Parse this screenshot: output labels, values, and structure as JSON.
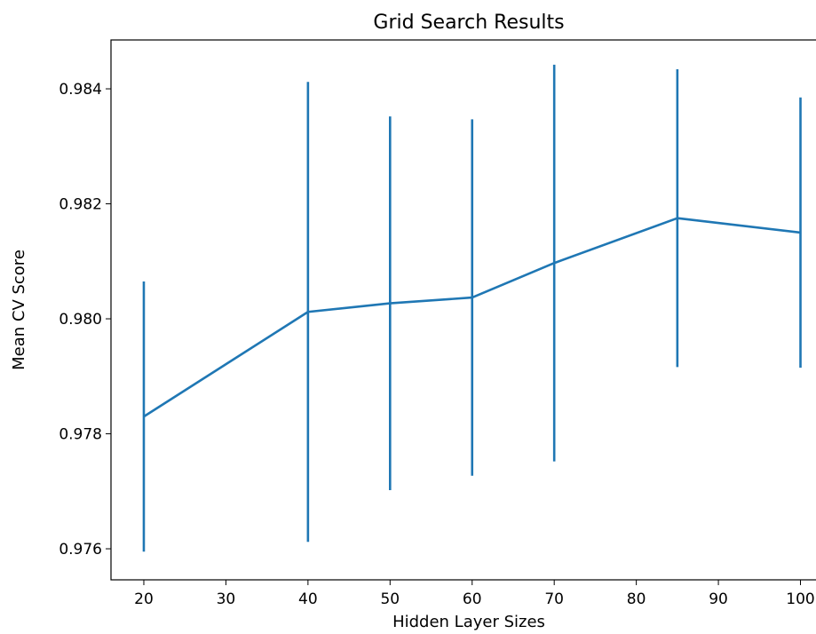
{
  "chart_data": {
    "type": "line",
    "title": "Grid Search Results",
    "xlabel": "Hidden Layer Sizes",
    "ylabel": "Mean CV Score",
    "series_color": "#1f77b4",
    "grid": false,
    "legend": "none",
    "error_bars": true,
    "x": [
      20,
      40,
      50,
      60,
      70,
      85,
      100
    ],
    "y": [
      0.9783,
      0.98012,
      0.98027,
      0.98037,
      0.98097,
      0.98175,
      0.9815
    ],
    "y_error": [
      0.00235,
      0.004,
      0.00325,
      0.0031,
      0.00345,
      0.00259,
      0.00235
    ],
    "xlim": [
      16,
      102
    ],
    "ylim": [
      0.97546,
      0.98485
    ],
    "x_ticks": [
      20,
      30,
      40,
      50,
      60,
      70,
      80,
      90,
      100
    ],
    "x_tick_labels": [
      "20",
      "30",
      "40",
      "50",
      "60",
      "70",
      "80",
      "90",
      "100"
    ],
    "y_ticks": [
      0.976,
      0.978,
      0.98,
      0.982,
      0.984
    ],
    "y_tick_labels": [
      "0.976",
      "0.978",
      "0.980",
      "0.982",
      "0.984"
    ]
  }
}
